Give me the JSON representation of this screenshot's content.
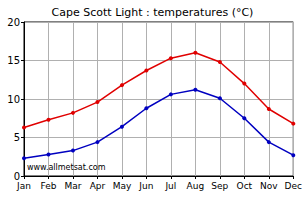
{
  "chart_data": {
    "type": "line",
    "title": "Cape Scott Light : temperatures (°C)",
    "categories": [
      "Jan",
      "Feb",
      "Mar",
      "Apr",
      "May",
      "Jun",
      "Jul",
      "Aug",
      "Sep",
      "Oct",
      "Nov",
      "Dec"
    ],
    "series": [
      {
        "color": "#e00000",
        "values": [
          6.3,
          7.3,
          8.2,
          9.6,
          11.8,
          13.7,
          15.3,
          16.0,
          14.8,
          12.0,
          8.7,
          6.8
        ]
      },
      {
        "color": "#0000c0",
        "values": [
          2.3,
          2.8,
          3.3,
          4.4,
          6.4,
          8.8,
          10.6,
          11.2,
          10.1,
          7.5,
          4.4,
          2.7
        ]
      }
    ],
    "ylim": [
      0,
      20
    ],
    "yticks": [
      0,
      5,
      10,
      15,
      20
    ],
    "grid": true,
    "marker": "circle",
    "annotations": [
      "www.allmetsat.com"
    ]
  }
}
